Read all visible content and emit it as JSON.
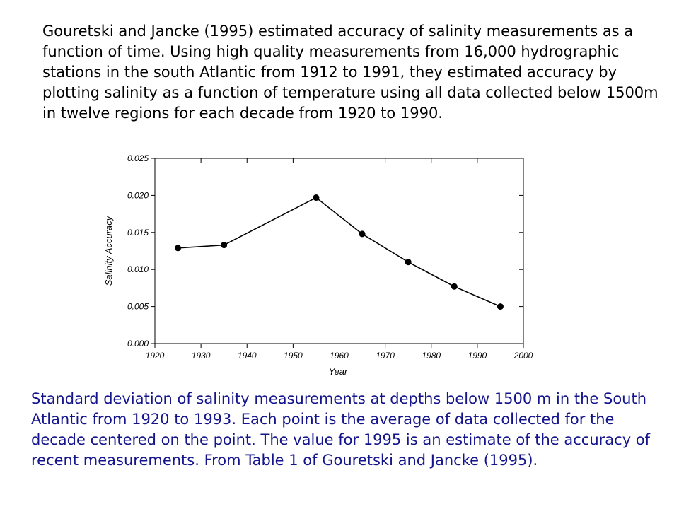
{
  "intro_text": "Gouretski and Jancke (1995) estimated accuracy of salinity measurements  as a function of time. Using high quality measurements from 16,000 hydrographic stations in the south Atlantic from 1912 to 1991, they estimated accuracy  by plotting salinity as a function of temperature using all data collected  below 1500m in twelve regions for each decade from 1920 to 1990.",
  "caption_text": "Standard deviation of salinity  measurements at depths below 1500 m in the South Atlantic from 1920 to  1993. Each point  is the average of data collected for the decade centered on the point.  The value  for 1995 is an estimate of the accuracy of recent measurements. From  Table 1 of Gouretski and Jancke (1995).",
  "colors": {
    "caption": "#14148c",
    "data": "#000000"
  },
  "chart_data": {
    "type": "line",
    "title": "",
    "xlabel": "Year",
    "ylabel": "Salinity Accuracy",
    "xlim": [
      1920,
      2000
    ],
    "ylim": [
      0,
      0.025
    ],
    "x_ticks": [
      1920,
      1930,
      1940,
      1950,
      1960,
      1970,
      1980,
      1990,
      2000
    ],
    "y_ticks": [
      "0.000",
      "0.005",
      "0.010",
      "0.015",
      "0.020",
      "0.025"
    ],
    "grid": false,
    "legend": "none",
    "markers": "filled-circle",
    "series": [
      {
        "x": [
          1925,
          1935,
          1955,
          1965,
          1975,
          1985,
          1995
        ],
        "y": [
          0.0129,
          0.0133,
          0.0197,
          0.0148,
          0.011,
          0.0077,
          0.005
        ]
      }
    ]
  }
}
